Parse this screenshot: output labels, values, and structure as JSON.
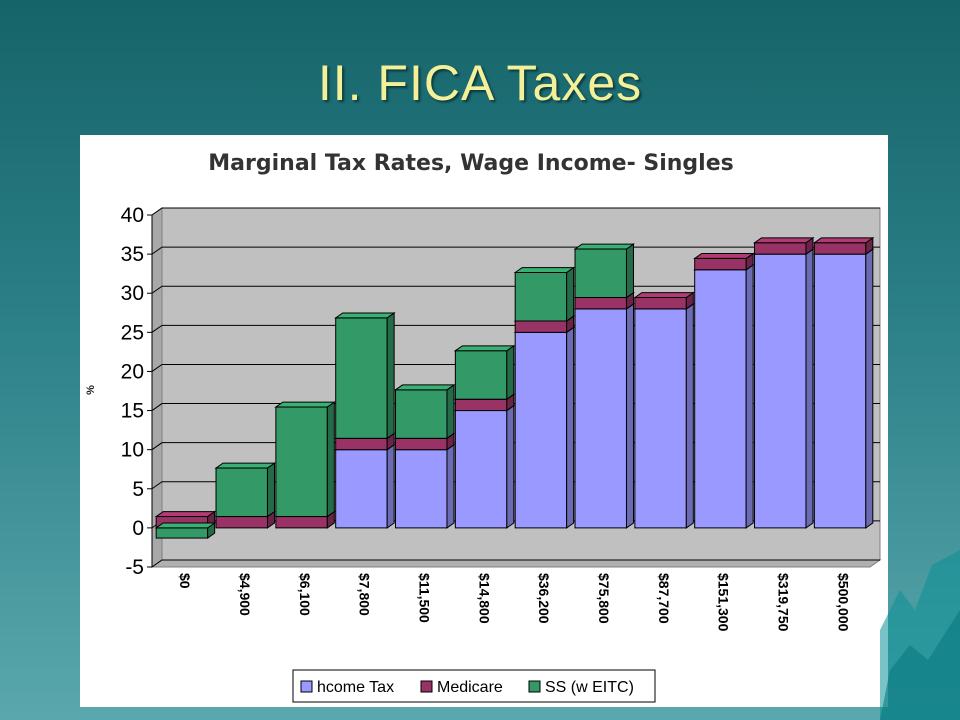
{
  "slide": {
    "title": "II. FICA Taxes"
  },
  "colors": {
    "income_tax": "#9999ff",
    "medicare": "#993366",
    "ss": "#339966",
    "wall": "#c0c0c0",
    "floor": "#b0b0b0"
  },
  "chart_data": {
    "type": "bar",
    "stacked": true,
    "title": "Marginal Tax Rates, Wage Income- Singles",
    "ylabel": "%",
    "xlabel": "",
    "ylim": [
      -5,
      40
    ],
    "yticks": [
      40,
      35,
      30,
      25,
      20,
      15,
      10,
      5,
      0,
      -5
    ],
    "grid": true,
    "legend": "bottom",
    "categories": [
      "$0",
      "$4,900",
      "$6,100",
      "$7,800",
      "$11,500",
      "$14,800",
      "$36,200",
      "$75,800",
      "$87,700",
      "$151,300",
      "$319,750",
      "$500,000"
    ],
    "series": [
      {
        "name": "Income Tax",
        "legend_label": "hcome Tax",
        "values": [
          0,
          0,
          0,
          10,
          10,
          15,
          25,
          28,
          28,
          33,
          35,
          35
        ]
      },
      {
        "name": "Medicare",
        "legend_label": "Medicare",
        "values": [
          1.45,
          1.45,
          1.45,
          1.45,
          1.45,
          1.45,
          1.45,
          1.45,
          1.45,
          1.45,
          1.45,
          1.45
        ]
      },
      {
        "name": "SS (w EITC)",
        "legend_label": "SS (w  EITC)",
        "values": [
          -1.3,
          6.2,
          14,
          15.4,
          6.2,
          6.2,
          6.2,
          6.2,
          0,
          0,
          0,
          0
        ]
      }
    ]
  }
}
